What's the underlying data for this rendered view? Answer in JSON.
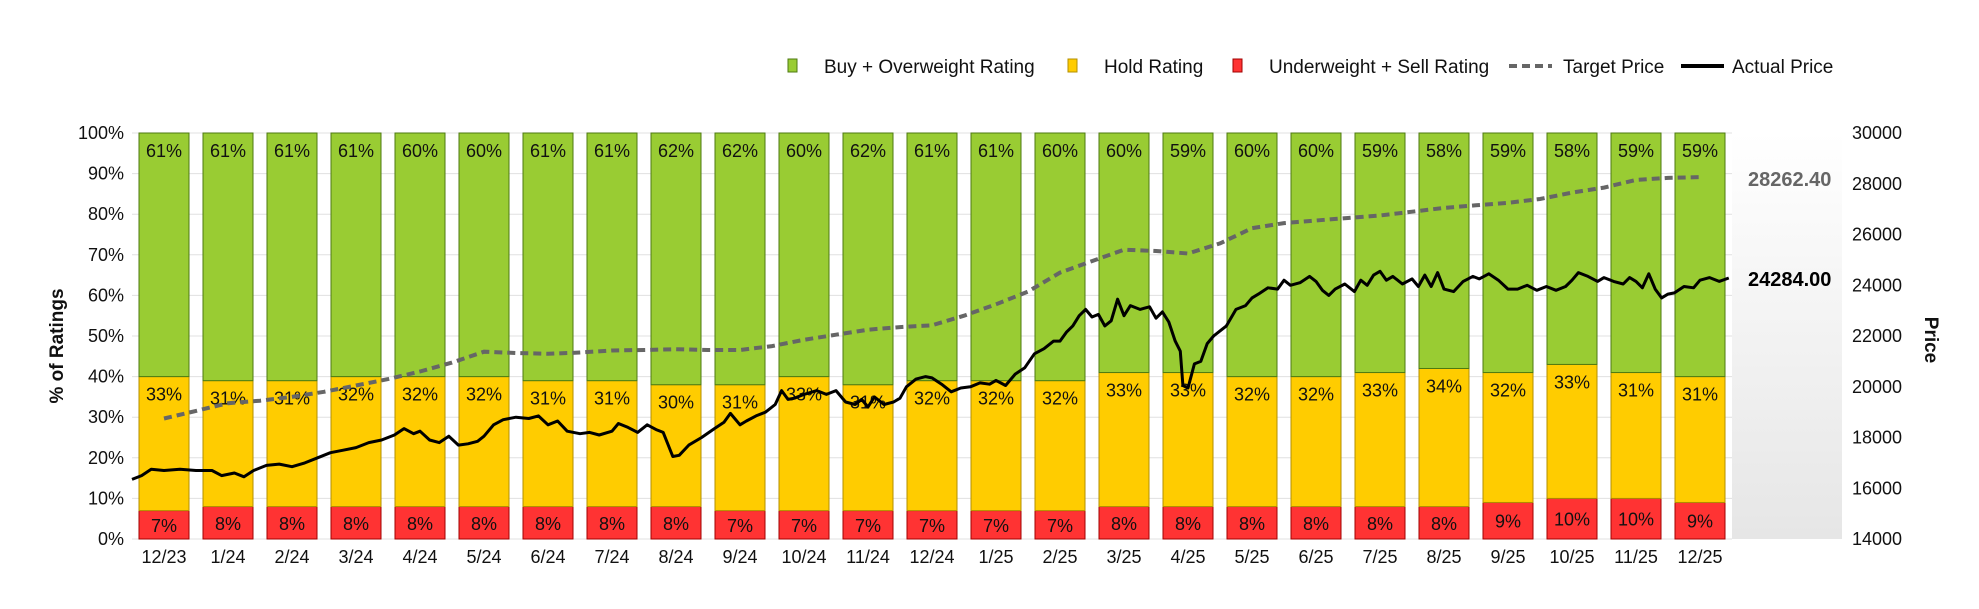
{
  "chart_data": {
    "type": "bar",
    "stacked": true,
    "categories": [
      "12/23",
      "1/24",
      "2/24",
      "3/24",
      "4/24",
      "5/24",
      "6/24",
      "7/24",
      "8/24",
      "9/24",
      "10/24",
      "11/24",
      "12/24",
      "1/25",
      "2/25",
      "3/25",
      "4/25",
      "5/25",
      "6/25",
      "7/25",
      "8/25",
      "9/25",
      "10/25",
      "11/25",
      "12/25"
    ],
    "series": [
      {
        "key": "sell",
        "name": "Underweight + Sell Rating",
        "color": "#ff3333",
        "values": [
          7,
          8,
          8,
          8,
          8,
          8,
          8,
          8,
          8,
          7,
          7,
          7,
          7,
          7,
          7,
          8,
          8,
          8,
          8,
          8,
          8,
          9,
          10,
          10,
          9
        ]
      },
      {
        "key": "hold",
        "name": "Hold Rating",
        "color": "#ffcc00",
        "values": [
          33,
          31,
          31,
          32,
          32,
          32,
          31,
          31,
          30,
          31,
          33,
          31,
          32,
          32,
          32,
          33,
          33,
          32,
          32,
          33,
          34,
          32,
          33,
          31,
          31
        ]
      },
      {
        "key": "buy",
        "name": "Buy + Overweight Rating",
        "color": "#99cc33",
        "values": [
          61,
          61,
          61,
          61,
          60,
          60,
          61,
          61,
          62,
          62,
          60,
          62,
          61,
          61,
          60,
          60,
          59,
          60,
          60,
          59,
          58,
          59,
          58,
          59,
          59
        ]
      }
    ],
    "target_price": [
      [
        0,
        18750
      ],
      [
        0.5,
        19050
      ],
      [
        1,
        19350
      ],
      [
        1.5,
        19450
      ],
      [
        2,
        19600
      ],
      [
        2.5,
        19800
      ],
      [
        3,
        20050
      ],
      [
        3.5,
        20300
      ],
      [
        4,
        20600
      ],
      [
        4.5,
        20950
      ],
      [
        5,
        21380
      ],
      [
        5.5,
        21330
      ],
      [
        6,
        21300
      ],
      [
        6.5,
        21350
      ],
      [
        7,
        21430
      ],
      [
        7.5,
        21450
      ],
      [
        8,
        21480
      ],
      [
        8.5,
        21450
      ],
      [
        9,
        21450
      ],
      [
        9.5,
        21600
      ],
      [
        10,
        21850
      ],
      [
        10.5,
        22050
      ],
      [
        11,
        22250
      ],
      [
        11.5,
        22350
      ],
      [
        12,
        22420
      ],
      [
        12.5,
        22800
      ],
      [
        13,
        23250
      ],
      [
        13.5,
        23750
      ],
      [
        14,
        24500
      ],
      [
        14.5,
        24950
      ],
      [
        15,
        25400
      ],
      [
        15.5,
        25350
      ],
      [
        16,
        25250
      ],
      [
        16.5,
        25650
      ],
      [
        17,
        26250
      ],
      [
        17.5,
        26450
      ],
      [
        18,
        26550
      ],
      [
        18.5,
        26650
      ],
      [
        19,
        26750
      ],
      [
        19.5,
        26900
      ],
      [
        20,
        27050
      ],
      [
        20.5,
        27150
      ],
      [
        21,
        27250
      ],
      [
        21.5,
        27400
      ],
      [
        22,
        27650
      ],
      [
        22.5,
        27850
      ],
      [
        23,
        28150
      ],
      [
        23.5,
        28230
      ],
      [
        24,
        28262.4
      ]
    ],
    "actual_price": [
      [
        -0.5,
        16350
      ],
      [
        -0.35,
        16500
      ],
      [
        -0.2,
        16750
      ],
      [
        0,
        16700
      ],
      [
        0.25,
        16750
      ],
      [
        0.5,
        16700
      ],
      [
        0.75,
        16700
      ],
      [
        0.9,
        16500
      ],
      [
        1.1,
        16600
      ],
      [
        1.25,
        16450
      ],
      [
        1.4,
        16700
      ],
      [
        1.6,
        16900
      ],
      [
        1.8,
        16950
      ],
      [
        2,
        16850
      ],
      [
        2.2,
        17000
      ],
      [
        2.4,
        17200
      ],
      [
        2.6,
        17400
      ],
      [
        2.8,
        17500
      ],
      [
        3,
        17600
      ],
      [
        3.2,
        17800
      ],
      [
        3.4,
        17900
      ],
      [
        3.6,
        18100
      ],
      [
        3.75,
        18350
      ],
      [
        3.9,
        18150
      ],
      [
        4,
        18250
      ],
      [
        4.15,
        17900
      ],
      [
        4.3,
        17800
      ],
      [
        4.45,
        18050
      ],
      [
        4.6,
        17700
      ],
      [
        4.75,
        17750
      ],
      [
        4.9,
        17850
      ],
      [
        5,
        18050
      ],
      [
        5.15,
        18500
      ],
      [
        5.3,
        18700
      ],
      [
        5.5,
        18800
      ],
      [
        5.7,
        18750
      ],
      [
        5.85,
        18850
      ],
      [
        6,
        18500
      ],
      [
        6.15,
        18650
      ],
      [
        6.3,
        18250
      ],
      [
        6.5,
        18150
      ],
      [
        6.65,
        18200
      ],
      [
        6.8,
        18100
      ],
      [
        7,
        18250
      ],
      [
        7.1,
        18550
      ],
      [
        7.25,
        18400
      ],
      [
        7.4,
        18200
      ],
      [
        7.55,
        18500
      ],
      [
        7.7,
        18300
      ],
      [
        7.8,
        18200
      ],
      [
        7.95,
        17250
      ],
      [
        8.05,
        17300
      ],
      [
        8.2,
        17700
      ],
      [
        8.4,
        18000
      ],
      [
        8.6,
        18350
      ],
      [
        8.75,
        18600
      ],
      [
        8.85,
        18950
      ],
      [
        9,
        18500
      ],
      [
        9.1,
        18650
      ],
      [
        9.25,
        18850
      ],
      [
        9.4,
        19000
      ],
      [
        9.55,
        19300
      ],
      [
        9.65,
        19850
      ],
      [
        9.75,
        19500
      ],
      [
        9.85,
        19550
      ],
      [
        10,
        19700
      ],
      [
        10.2,
        19850
      ],
      [
        10.35,
        19700
      ],
      [
        10.5,
        19850
      ],
      [
        10.65,
        19400
      ],
      [
        10.8,
        19300
      ],
      [
        10.9,
        19500
      ],
      [
        11,
        19200
      ],
      [
        11.1,
        19600
      ],
      [
        11.25,
        19300
      ],
      [
        11.4,
        19400
      ],
      [
        11.5,
        19550
      ],
      [
        11.6,
        20000
      ],
      [
        11.75,
        20300
      ],
      [
        11.9,
        20400
      ],
      [
        12,
        20350
      ],
      [
        12.15,
        20100
      ],
      [
        12.3,
        19800
      ],
      [
        12.45,
        19950
      ],
      [
        12.6,
        20000
      ],
      [
        12.75,
        20150
      ],
      [
        12.9,
        20100
      ],
      [
        13,
        20250
      ],
      [
        13.15,
        20050
      ],
      [
        13.3,
        20500
      ],
      [
        13.45,
        20750
      ],
      [
        13.6,
        21300
      ],
      [
        13.75,
        21500
      ],
      [
        13.9,
        21800
      ],
      [
        14,
        21800
      ],
      [
        14.1,
        22150
      ],
      [
        14.2,
        22400
      ],
      [
        14.3,
        22800
      ],
      [
        14.4,
        23050
      ],
      [
        14.5,
        22750
      ],
      [
        14.6,
        22850
      ],
      [
        14.7,
        22400
      ],
      [
        14.8,
        22600
      ],
      [
        14.9,
        23450
      ],
      [
        15,
        22800
      ],
      [
        15.1,
        23200
      ],
      [
        15.25,
        23050
      ],
      [
        15.4,
        23150
      ],
      [
        15.5,
        22700
      ],
      [
        15.6,
        22950
      ],
      [
        15.7,
        22550
      ],
      [
        15.8,
        21800
      ],
      [
        15.88,
        21400
      ],
      [
        15.92,
        20050
      ],
      [
        16,
        19950
      ],
      [
        16.1,
        20900
      ],
      [
        16.2,
        21000
      ],
      [
        16.3,
        21700
      ],
      [
        16.4,
        22000
      ],
      [
        16.5,
        22200
      ],
      [
        16.6,
        22400
      ],
      [
        16.75,
        23050
      ],
      [
        16.9,
        23200
      ],
      [
        17,
        23500
      ],
      [
        17.1,
        23650
      ],
      [
        17.25,
        23900
      ],
      [
        17.4,
        23850
      ],
      [
        17.5,
        24200
      ],
      [
        17.6,
        24000
      ],
      [
        17.75,
        24100
      ],
      [
        17.9,
        24350
      ],
      [
        18,
        24150
      ],
      [
        18.1,
        23800
      ],
      [
        18.2,
        23600
      ],
      [
        18.3,
        23850
      ],
      [
        18.45,
        24050
      ],
      [
        18.6,
        23750
      ],
      [
        18.7,
        24200
      ],
      [
        18.8,
        24000
      ],
      [
        18.9,
        24400
      ],
      [
        19,
        24550
      ],
      [
        19.1,
        24200
      ],
      [
        19.2,
        24350
      ],
      [
        19.35,
        24050
      ],
      [
        19.5,
        24250
      ],
      [
        19.6,
        23950
      ],
      [
        19.7,
        24400
      ],
      [
        19.8,
        23950
      ],
      [
        19.9,
        24500
      ],
      [
        20,
        23850
      ],
      [
        20.15,
        23750
      ],
      [
        20.3,
        24150
      ],
      [
        20.45,
        24350
      ],
      [
        20.55,
        24250
      ],
      [
        20.7,
        24450
      ],
      [
        20.85,
        24200
      ],
      [
        21,
        23850
      ],
      [
        21.15,
        23850
      ],
      [
        21.3,
        24000
      ],
      [
        21.45,
        23800
      ],
      [
        21.6,
        23950
      ],
      [
        21.75,
        23800
      ],
      [
        21.9,
        23950
      ],
      [
        22,
        24200
      ],
      [
        22.1,
        24500
      ],
      [
        22.25,
        24350
      ],
      [
        22.4,
        24150
      ],
      [
        22.5,
        24300
      ],
      [
        22.65,
        24150
      ],
      [
        22.8,
        24050
      ],
      [
        22.9,
        24300
      ],
      [
        23,
        24150
      ],
      [
        23.1,
        23900
      ],
      [
        23.2,
        24450
      ],
      [
        23.3,
        23850
      ],
      [
        23.4,
        23500
      ],
      [
        23.5,
        23650
      ],
      [
        23.6,
        23700
      ],
      [
        23.75,
        23950
      ],
      [
        23.9,
        23900
      ],
      [
        24,
        24200
      ],
      [
        24.15,
        24300
      ],
      [
        24.3,
        24150
      ],
      [
        24.45,
        24284
      ]
    ],
    "last_target_price": "28262.40",
    "last_actual_price": "24284.00",
    "y_left": {
      "label": "% of Ratings",
      "min": 0,
      "max": 100,
      "ticks": [
        "0%",
        "10%",
        "20%",
        "30%",
        "40%",
        "50%",
        "60%",
        "70%",
        "80%",
        "90%",
        "100%"
      ]
    },
    "y_right": {
      "label": "Price",
      "min": 14000,
      "max": 30000,
      "ticks": [
        "14000",
        "16000",
        "18000",
        "20000",
        "22000",
        "24000",
        "26000",
        "28000",
        "30000"
      ]
    },
    "legend": [
      {
        "label": "Buy + Overweight Rating",
        "kind": "box",
        "color": "#99cc33",
        "border": "#4d7a10"
      },
      {
        "label": "Hold Rating",
        "kind": "box",
        "color": "#ffcc00",
        "border": "#b38f00"
      },
      {
        "label": "Underweight + Sell Rating",
        "kind": "box",
        "color": "#ff3333",
        "border": "#a00000"
      },
      {
        "label": "Target Price",
        "kind": "dash",
        "color": "#666666"
      },
      {
        "label": "Actual Price",
        "kind": "line",
        "color": "#000000"
      }
    ],
    "legend_position": "top-right",
    "colors": {
      "target": "#666666",
      "actual": "#000000",
      "grid": "#e0e0e0",
      "panel": "#eeeeee"
    }
  }
}
